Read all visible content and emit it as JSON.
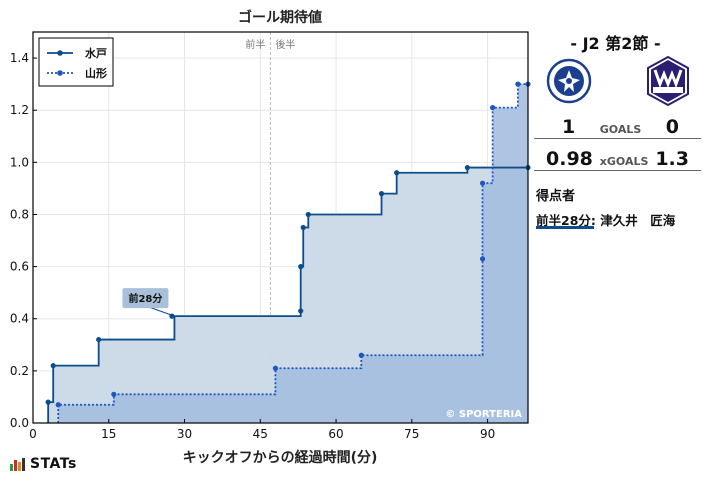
{
  "chart_data": {
    "type": "line",
    "title": "ゴール期待値",
    "xlabel": "キックオフからの経過時間(分)",
    "ylabel": "",
    "xlim": [
      0,
      98
    ],
    "ylim": [
      0,
      1.5
    ],
    "xticks": [
      0,
      15,
      30,
      45,
      60,
      75,
      90
    ],
    "yticks": [
      0.0,
      0.2,
      0.4,
      0.6,
      0.8,
      1.0,
      1.2,
      1.4
    ],
    "grid": true,
    "legend_placement": "top-left",
    "halftime_x": 47,
    "halftime_labels": {
      "first": "前半",
      "second": "後半"
    },
    "annotation": {
      "x": 28,
      "y": 0.41,
      "text": "前28分"
    },
    "watermark": "© SPORTERIA",
    "series": [
      {
        "name": "水戸",
        "line_style": "solid",
        "color": "#0c4d8a",
        "fill": "#cad8e7",
        "points": [
          [
            3,
            0.0
          ],
          [
            3,
            0.08
          ],
          [
            4,
            0.08
          ],
          [
            4,
            0.22
          ],
          [
            13,
            0.22
          ],
          [
            13,
            0.32
          ],
          [
            28,
            0.32
          ],
          [
            28,
            0.41
          ],
          [
            53,
            0.41
          ],
          [
            53,
            0.43
          ],
          [
            53,
            0.6
          ],
          [
            53.5,
            0.6
          ],
          [
            53.5,
            0.75
          ],
          [
            54.5,
            0.75
          ],
          [
            54.5,
            0.8
          ],
          [
            69,
            0.8
          ],
          [
            69,
            0.88
          ],
          [
            72,
            0.88
          ],
          [
            72,
            0.96
          ],
          [
            86,
            0.96
          ],
          [
            86,
            0.98
          ],
          [
            98,
            0.98
          ]
        ],
        "markers": [
          [
            3,
            0.08
          ],
          [
            4,
            0.22
          ],
          [
            13,
            0.32
          ],
          [
            27.5,
            0.41
          ],
          [
            53,
            0.43
          ],
          [
            53,
            0.6
          ],
          [
            53.5,
            0.75
          ],
          [
            54.5,
            0.8
          ],
          [
            69,
            0.88
          ],
          [
            72,
            0.96
          ],
          [
            86,
            0.98
          ],
          [
            98,
            0.98
          ]
        ]
      },
      {
        "name": "山形",
        "line_style": "dotted",
        "color": "#1d56c0",
        "fill": "#a5bedf",
        "points": [
          [
            5,
            0.0
          ],
          [
            5,
            0.07
          ],
          [
            16,
            0.07
          ],
          [
            16,
            0.11
          ],
          [
            48,
            0.11
          ],
          [
            48,
            0.21
          ],
          [
            65,
            0.21
          ],
          [
            65,
            0.26
          ],
          [
            89,
            0.26
          ],
          [
            89,
            0.63
          ],
          [
            89,
            0.92
          ],
          [
            91,
            0.92
          ],
          [
            91,
            1.21
          ],
          [
            96,
            1.21
          ],
          [
            96,
            1.3
          ],
          [
            98,
            1.3
          ]
        ],
        "markers": [
          [
            5,
            0.07
          ],
          [
            16,
            0.11
          ],
          [
            48,
            0.21
          ],
          [
            65,
            0.26
          ],
          [
            89,
            0.63
          ],
          [
            89,
            0.92
          ],
          [
            91,
            1.21
          ],
          [
            96,
            1.3
          ],
          [
            98,
            1.3
          ]
        ]
      }
    ]
  },
  "match": {
    "title": "- J2 第2節 -",
    "home_goals": "1",
    "away_goals": "0",
    "goals_label": "GOALS",
    "home_xg": "0.98",
    "away_xg": "1.3",
    "xg_label": "xGOALS",
    "home_logo_text": "MITO HOLLYHOCK",
    "away_logo_text": "Montedio",
    "away_logo_sub": "YAMAGATA"
  },
  "scorers": {
    "heading": "得点者",
    "items": [
      {
        "text": "前半28分: 津久井　匠海"
      }
    ]
  },
  "brand": {
    "name": "STATs",
    "bar_colors": [
      "#2a9a48",
      "#d02a2a",
      "#e58a1e",
      "#333333"
    ]
  }
}
